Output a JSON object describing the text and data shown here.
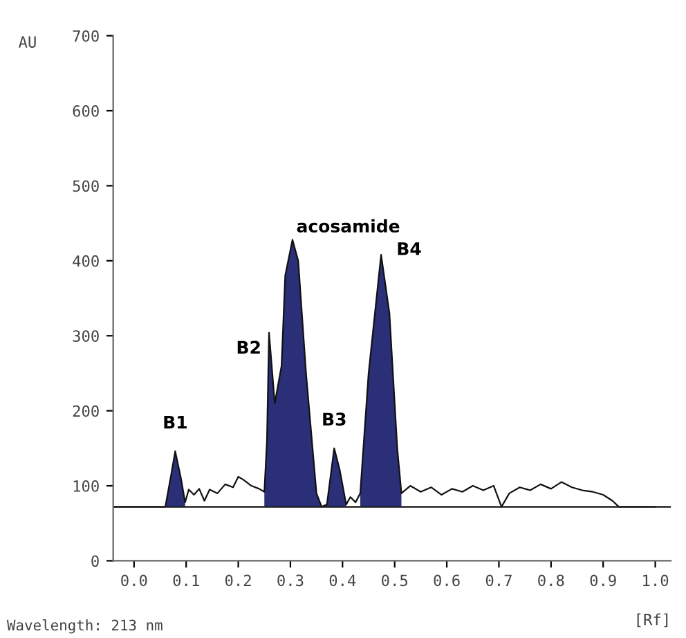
{
  "chart_data": {
    "type": "line",
    "xlabel": "[Rf]",
    "ylabel": "AU",
    "x": [
      -0.04,
      0.06,
      0.07,
      0.079,
      0.09,
      0.098,
      0.105,
      0.115,
      0.125,
      0.135,
      0.145,
      0.16,
      0.175,
      0.19,
      0.2,
      0.21,
      0.225,
      0.24,
      0.25,
      0.255,
      0.259,
      0.27,
      0.283,
      0.29,
      0.304,
      0.315,
      0.33,
      0.35,
      0.36,
      0.37,
      0.384,
      0.395,
      0.407,
      0.415,
      0.425,
      0.434,
      0.45,
      0.474,
      0.49,
      0.505,
      0.513,
      0.53,
      0.55,
      0.57,
      0.59,
      0.61,
      0.63,
      0.65,
      0.67,
      0.69,
      0.705,
      0.72,
      0.74,
      0.76,
      0.78,
      0.8,
      0.82,
      0.84,
      0.86,
      0.88,
      0.9,
      0.918,
      0.93,
      1.0
    ],
    "series": [
      {
        "type": "area",
        "color": "#2a2f78",
        "values": [
          null,
          72,
          110,
          146,
          110,
          78,
          null,
          null,
          null,
          null,
          null,
          null,
          null,
          null,
          null,
          null,
          null,
          null,
          92,
          160,
          304,
          210,
          260,
          380,
          428,
          400,
          250,
          90,
          72,
          75,
          150,
          120,
          75,
          null,
          null,
          90,
          250,
          408,
          330,
          150,
          90,
          null,
          null,
          null,
          null,
          null,
          null,
          null,
          null,
          null,
          null,
          null,
          null,
          null,
          null,
          null,
          null,
          null,
          null,
          null,
          null,
          null,
          null,
          null
        ]
      },
      {
        "type": "line",
        "color": "#111111",
        "values": [
          72,
          72,
          110,
          146,
          110,
          78,
          95,
          88,
          96,
          80,
          95,
          90,
          102,
          98,
          112,
          108,
          100,
          96,
          92,
          160,
          304,
          210,
          260,
          380,
          428,
          400,
          250,
          90,
          72,
          75,
          150,
          120,
          75,
          85,
          78,
          90,
          250,
          408,
          330,
          150,
          90,
          100,
          92,
          98,
          88,
          96,
          92,
          100,
          94,
          100,
          72,
          90,
          98,
          94,
          102,
          96,
          105,
          98,
          94,
          92,
          88,
          80,
          72,
          72
        ]
      }
    ],
    "xlim": [
      -0.04,
      1.03
    ],
    "ylim": [
      0,
      700
    ],
    "xticks": [
      {
        "value": 0,
        "label": "0.0"
      },
      {
        "value": 0.1,
        "label": "0.1"
      },
      {
        "value": 0.2,
        "label": "0.2"
      },
      {
        "value": 0.3,
        "label": "0.3"
      },
      {
        "value": 0.4,
        "label": "0.4"
      },
      {
        "value": 0.5,
        "label": "0.5"
      },
      {
        "value": 0.6,
        "label": "0.6"
      },
      {
        "value": 0.7,
        "label": "0.7"
      },
      {
        "value": 0.8,
        "label": "0.8"
      },
      {
        "value": 0.9,
        "label": "0.9"
      },
      {
        "value": 1.0,
        "label": "1.0"
      }
    ],
    "yticks": [
      0,
      100,
      200,
      300,
      400,
      500,
      600,
      700
    ],
    "ref_lines": [
      {
        "axis": "y",
        "value": 72,
        "color": "#222222"
      }
    ],
    "annotations": [
      {
        "text": "B1",
        "x": 0.079,
        "y": 146
      },
      {
        "text": "B2",
        "x": 0.259,
        "y": 304
      },
      {
        "text": "acosamide",
        "x": 0.304,
        "y": 428
      },
      {
        "text": "B3",
        "x": 0.384,
        "y": 150
      },
      {
        "text": "B4",
        "x": 0.474,
        "y": 408
      },
      "Wavelength: 213 nm"
    ],
    "grid": false,
    "legend": false
  }
}
